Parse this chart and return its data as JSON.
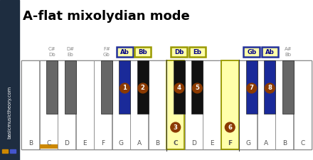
{
  "title": "A-flat mixolydian mode",
  "title_fontsize": 13,
  "background_color": "#ffffff",
  "white_keys": [
    "B",
    "C",
    "D",
    "E",
    "F",
    "G",
    "A",
    "B",
    "C",
    "D",
    "E",
    "F",
    "G",
    "A",
    "B",
    "C"
  ],
  "black_keys": [
    {
      "after": 1,
      "tl1": "C#",
      "tl2": "Db",
      "fill": "#666666",
      "box_lbl": "",
      "blue_box": false,
      "note": null
    },
    {
      "after": 2,
      "tl1": "D#",
      "tl2": "Eb",
      "fill": "#666666",
      "box_lbl": "",
      "blue_box": false,
      "note": null
    },
    {
      "after": 4,
      "tl1": "F#",
      "tl2": "Gb",
      "fill": "#666666",
      "box_lbl": "",
      "blue_box": false,
      "note": null
    },
    {
      "after": 5,
      "tl1": "",
      "tl2": "",
      "fill": "#1a2a99",
      "box_lbl": "Ab",
      "blue_box": true,
      "note": 1
    },
    {
      "after": 6,
      "tl1": "",
      "tl2": "",
      "fill": "#111111",
      "box_lbl": "Bb",
      "blue_box": false,
      "note": 2
    },
    {
      "after": 8,
      "tl1": "",
      "tl2": "",
      "fill": "#111111",
      "box_lbl": "Db",
      "blue_box": false,
      "note": 4
    },
    {
      "after": 9,
      "tl1": "",
      "tl2": "",
      "fill": "#111111",
      "box_lbl": "Eb",
      "blue_box": false,
      "note": 5
    },
    {
      "after": 12,
      "tl1": "",
      "tl2": "",
      "fill": "#1a2a99",
      "box_lbl": "Gb",
      "blue_box": true,
      "note": 7
    },
    {
      "after": 13,
      "tl1": "",
      "tl2": "",
      "fill": "#1a2a99",
      "box_lbl": "Ab",
      "blue_box": true,
      "note": 8
    },
    {
      "after": 14,
      "tl1": "A#",
      "tl2": "Bb",
      "fill": "#666666",
      "box_lbl": "",
      "blue_box": false,
      "note": null
    }
  ],
  "white_note_markers": [
    {
      "idx": 8,
      "lbl": "C",
      "note": 3
    },
    {
      "idx": 11,
      "lbl": "F",
      "note": 6
    }
  ],
  "highlighted_white": [
    8,
    11
  ],
  "orange_bar_white": 1,
  "circle_color": "#8B3A00",
  "highlight_box_color": "#ffffaa",
  "sidebar_text": "basicmusictheory.com"
}
